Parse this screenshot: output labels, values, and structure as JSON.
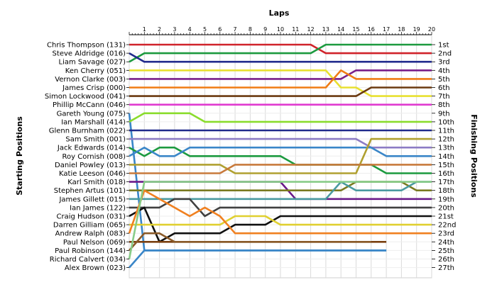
{
  "chart_data": {
    "type": "line",
    "title": "Laps",
    "ylabel_left": "Starting Positions",
    "ylabel_right": "Finishing Positions",
    "x_ticks": [
      1,
      2,
      3,
      4,
      5,
      6,
      7,
      8,
      9,
      10,
      11,
      12,
      13,
      14,
      15,
      16,
      17,
      18,
      19,
      20
    ],
    "xlim": [
      0,
      20
    ],
    "ylim": [
      1,
      27
    ],
    "grid": true,
    "finishing_labels": [
      "1st",
      "2nd",
      "3rd",
      "4th",
      "5th",
      "6th",
      "7th",
      "8th",
      "9th",
      "10th",
      "11th",
      "12th",
      "13th",
      "14th",
      "15th",
      "16th",
      "17th",
      "18th",
      "19th",
      "20th",
      "21st",
      "22nd",
      "23rd",
      "24th",
      "25th",
      "26th",
      "27th"
    ],
    "series": [
      {
        "name": "Chris Thompson (131)",
        "color": "#d0232a",
        "values": [
          1,
          1,
          1,
          1,
          1,
          1,
          1,
          1,
          1,
          1,
          1,
          1,
          1,
          2,
          2,
          2,
          2,
          2,
          2,
          2,
          2
        ]
      },
      {
        "name": "Steve Aldridge (016)",
        "color": "#1c9a3f",
        "values": [
          3,
          2,
          2,
          2,
          2,
          2,
          2,
          2,
          2,
          2,
          2,
          2,
          2,
          1,
          1,
          1,
          1,
          1,
          1,
          1,
          1
        ]
      },
      {
        "name": "Liam Savage (027)",
        "color": "#202a8c",
        "values": [
          2,
          3,
          3,
          3,
          3,
          3,
          3,
          3,
          3,
          3,
          3,
          3,
          3,
          3,
          3,
          3,
          3,
          3,
          3,
          3,
          3
        ]
      },
      {
        "name": "Ken Cherry (051)",
        "color": "#e8e030",
        "values": [
          4,
          4,
          4,
          4,
          4,
          4,
          4,
          4,
          4,
          4,
          4,
          4,
          4,
          4,
          6,
          6,
          7,
          7,
          7,
          7,
          7
        ]
      },
      {
        "name": "Vernon Clarke (003)",
        "color": "#7a1f8a",
        "values": [
          5,
          5,
          5,
          5,
          5,
          5,
          5,
          5,
          5,
          5,
          5,
          5,
          5,
          5,
          5,
          4,
          4,
          4,
          4,
          4,
          4
        ]
      },
      {
        "name": "James Crisp (000)",
        "color": "#f07c14",
        "values": [
          6,
          6,
          6,
          6,
          6,
          6,
          6,
          6,
          6,
          6,
          6,
          6,
          6,
          6,
          4,
          5,
          5,
          5,
          5,
          5,
          5
        ]
      },
      {
        "name": "Simon Lockwood (041)",
        "color": "#6b3a10",
        "values": [
          7,
          7,
          7,
          7,
          7,
          7,
          7,
          7,
          7,
          7,
          7,
          7,
          7,
          7,
          7,
          7,
          6,
          6,
          6,
          6,
          6
        ]
      },
      {
        "name": "Phillip McCann (046)",
        "color": "#e03ad0",
        "values": [
          8,
          8,
          8,
          8,
          8,
          8,
          8,
          8,
          8,
          8,
          8,
          8,
          8,
          8,
          8,
          8,
          8,
          8,
          8,
          8,
          8
        ]
      },
      {
        "name": "Gareth Young (075)",
        "color": "#3a86c8",
        "values": [
          9,
          25,
          25,
          25,
          25,
          25,
          25,
          25,
          25,
          25,
          25,
          25,
          25,
          25,
          25,
          25,
          25,
          25
        ]
      },
      {
        "name": "Ian Marshall (414)",
        "color": "#8adc2c",
        "values": [
          10,
          9,
          9,
          9,
          9,
          10,
          10,
          10,
          10,
          10,
          10,
          10,
          10,
          10,
          10,
          10,
          10,
          10,
          10,
          10,
          10
        ]
      },
      {
        "name": "Glenn Burnham (022)",
        "color": "#202a8c",
        "values": [
          11,
          11,
          11,
          11,
          11,
          11,
          11,
          11,
          11,
          11,
          11,
          11,
          11,
          11,
          11,
          11,
          11,
          11,
          11,
          11,
          11
        ]
      },
      {
        "name": "Sam Smith (001)",
        "color": "#8c7cc4",
        "values": [
          12,
          12,
          12,
          12,
          12,
          12,
          12,
          12,
          12,
          12,
          12,
          12,
          12,
          12,
          12,
          12,
          13,
          13,
          13,
          13,
          13
        ]
      },
      {
        "name": "Jack Edwards (014)",
        "color": "#1c9a3f",
        "values": [
          13,
          14,
          13,
          13,
          14,
          14,
          14,
          14,
          14,
          14,
          14,
          15,
          15,
          15,
          15,
          15,
          15,
          16,
          16,
          16,
          16
        ]
      },
      {
        "name": "Roy Cornish (008)",
        "color": "#3a86c8",
        "values": [
          14,
          13,
          14,
          14,
          13,
          13,
          13,
          13,
          13,
          13,
          13,
          13,
          13,
          13,
          13,
          13,
          13,
          14,
          14,
          14,
          14
        ]
      },
      {
        "name": "Daniel Powley (013)",
        "color": "#b0a030",
        "values": [
          15,
          15,
          15,
          15,
          15,
          15,
          15,
          16,
          16,
          16,
          16,
          16,
          16,
          16,
          16,
          16,
          12,
          12,
          12,
          12,
          12
        ]
      },
      {
        "name": "Katie Leeson (046)",
        "color": "#c87a3c",
        "values": [
          16,
          16,
          16,
          16,
          16,
          16,
          16,
          15,
          15,
          15,
          15,
          15,
          15,
          15,
          15,
          15,
          15,
          15,
          15,
          15,
          15
        ]
      },
      {
        "name": "Karl Smith (018)",
        "color": "#6a1a8a",
        "values": [
          17,
          17,
          17,
          17,
          17,
          17,
          17,
          17,
          17,
          17,
          17,
          19,
          19,
          19,
          19,
          19,
          19,
          19,
          19,
          19,
          19
        ]
      },
      {
        "name": "Stephen Artus (101)",
        "color": "#7a7a20",
        "values": [
          18,
          18,
          18,
          18,
          18,
          18,
          18,
          18,
          18,
          18,
          18,
          18,
          18,
          18,
          18,
          17,
          17,
          17,
          17,
          18,
          18
        ]
      },
      {
        "name": "James Gillett (015)",
        "color": "#4a9aa0",
        "values": [
          19,
          19,
          19,
          19,
          19,
          19,
          19,
          19,
          19,
          19,
          19,
          19,
          19,
          19,
          17,
          18,
          18,
          18,
          18,
          17,
          17
        ]
      },
      {
        "name": "Ian James (122)",
        "color": "#404040",
        "values": [
          20,
          20,
          20,
          19,
          19,
          21,
          20,
          20,
          20,
          20,
          20,
          20,
          20,
          20,
          20,
          20,
          20,
          20,
          20,
          20,
          20
        ]
      },
      {
        "name": "Craig Hudson (031)",
        "color": "#101010",
        "values": [
          21,
          20,
          24,
          23,
          23,
          23,
          23,
          22,
          22,
          22,
          21,
          21,
          21,
          21,
          21,
          21,
          21,
          21,
          21,
          21,
          21
        ]
      },
      {
        "name": "Darren Gilliam (065)",
        "color": "#e0d030",
        "values": [
          22,
          22,
          22,
          22,
          22,
          22,
          22,
          21,
          21,
          21,
          22,
          22,
          22,
          22,
          22,
          22,
          22,
          22,
          22,
          22,
          22
        ]
      },
      {
        "name": "Andrew Ralph (083)",
        "color": "#f08020",
        "values": [
          23,
          18,
          19,
          20,
          21,
          20,
          21,
          23,
          23,
          23,
          23,
          23,
          23,
          23,
          23,
          23,
          23,
          23,
          23,
          23,
          23
        ]
      },
      {
        "name": "Paul Nelson (069)",
        "color": "#7a4010",
        "values": [
          24,
          24,
          24,
          24,
          24,
          24,
          24,
          24,
          24,
          24,
          24,
          24,
          24,
          24,
          24,
          24,
          24,
          24
        ]
      },
      {
        "name": "Paul Robinson (144)",
        "color": "#8a5a28",
        "values": [
          25,
          23,
          23,
          24,
          24,
          24,
          24,
          24,
          24,
          24,
          24,
          24,
          24,
          24,
          24,
          24,
          24
        ]
      },
      {
        "name": "Richard Calvert (034)",
        "color": "#88cc88",
        "values": [
          26,
          17,
          17,
          17,
          17,
          17,
          17,
          17,
          17,
          17,
          17,
          17,
          17,
          17,
          17,
          17,
          17,
          17,
          17,
          17,
          17
        ]
      },
      {
        "name": "Alex Brown (023)",
        "color": "#3a86c8",
        "values": [
          27,
          25,
          25,
          25,
          25,
          25,
          25,
          25,
          25,
          25,
          25,
          25,
          25,
          25,
          25,
          25,
          25,
          25
        ]
      }
    ]
  }
}
